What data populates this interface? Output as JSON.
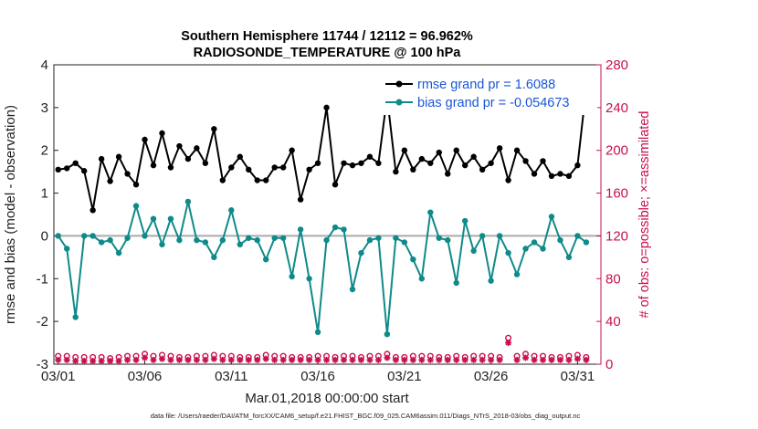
{
  "chart_data": {
    "type": "line",
    "title": "Southern Hemisphere 11744 / 12112 = 96.962%",
    "subtitle": "RADIOSONDE_TEMPERATURE @ 100 hPa",
    "xlabel": "Mar.01,2018 00:00:00 start",
    "ylabel": "rmse and bias (model - observation)",
    "ylabel_right": "# of obs: o=possible; ×=assimilated",
    "footnote": "data file: /Users/raeder/DAI/ATM_forcXX/CAM6_setup/f.e21.FHIST_BGC.f09_025.CAM6assim.011/Diags_NTrS_2018-03/obs_diag_output.nc",
    "xlim": [
      0.75,
      32.35
    ],
    "ylim": [
      -3,
      4
    ],
    "ylim_right": [
      0,
      280
    ],
    "x_ticks": [
      1,
      6,
      11,
      16,
      21,
      26,
      31
    ],
    "x_tick_labels": [
      "03/01",
      "03/06",
      "03/11",
      "03/16",
      "03/21",
      "03/26",
      "03/31"
    ],
    "y_ticks": [
      -3,
      -2,
      -1,
      0,
      1,
      2,
      3,
      4
    ],
    "y_right_ticks": [
      0,
      40,
      80,
      120,
      160,
      200,
      240,
      280
    ],
    "grid": false,
    "legend_position": "top-right",
    "series": [
      {
        "name": "rmse grand pr = 1.6088",
        "axis": "left",
        "color": "#000000",
        "marker": "circle",
        "x": [
          1,
          1.5,
          2,
          2.5,
          3,
          3.5,
          4,
          4.5,
          5,
          5.5,
          6,
          6.5,
          7,
          7.5,
          8,
          8.5,
          9,
          9.5,
          10,
          10.5,
          11,
          11.5,
          12,
          12.5,
          13,
          13.5,
          14,
          14.5,
          15,
          15.5,
          16,
          16.5,
          17,
          17.5,
          18,
          18.5,
          19,
          19.5,
          20,
          20.5,
          21,
          21.5,
          22,
          22.5,
          23,
          23.5,
          24,
          24.5,
          25,
          25.5,
          26,
          26.5,
          27,
          27.5,
          28,
          28.5,
          29,
          29.5,
          30,
          30.5,
          31,
          31.5
        ],
        "values": [
          1.55,
          1.58,
          1.7,
          1.52,
          0.6,
          1.8,
          1.28,
          1.85,
          1.45,
          1.2,
          2.25,
          1.65,
          2.4,
          1.6,
          2.1,
          1.8,
          2.05,
          1.7,
          2.5,
          1.3,
          1.6,
          1.85,
          1.55,
          1.3,
          1.3,
          1.6,
          1.6,
          2.0,
          0.85,
          1.55,
          1.7,
          3.0,
          1.2,
          1.7,
          1.65,
          1.7,
          1.85,
          1.7,
          3.25,
          1.5,
          2.0,
          1.55,
          1.8,
          1.7,
          1.95,
          1.45,
          2.0,
          1.65,
          1.85,
          1.55,
          1.7,
          2.05,
          1.3,
          2.0,
          1.75,
          1.45,
          1.75,
          1.4,
          1.45,
          1.4,
          1.65,
          3.45
        ]
      },
      {
        "name": "bias grand pr = -0.054673",
        "axis": "left",
        "color": "#0f8a8a",
        "marker": "circle",
        "x": [
          1,
          1.5,
          2,
          2.5,
          3,
          3.5,
          4,
          4.5,
          5,
          5.5,
          6,
          6.5,
          7,
          7.5,
          8,
          8.5,
          9,
          9.5,
          10,
          10.5,
          11,
          11.5,
          12,
          12.5,
          13,
          13.5,
          14,
          14.5,
          15,
          15.5,
          16,
          16.5,
          17,
          17.5,
          18,
          18.5,
          19,
          19.5,
          20,
          20.5,
          21,
          21.5,
          22,
          22.5,
          23,
          23.5,
          24,
          24.5,
          25,
          25.5,
          26,
          26.5,
          27,
          27.5,
          28,
          28.5,
          29,
          29.5,
          30,
          30.5,
          31,
          31.5
        ],
        "values": [
          0.0,
          -0.3,
          -1.9,
          0.0,
          0.0,
          -0.15,
          -0.1,
          -0.4,
          -0.05,
          0.7,
          0.0,
          0.4,
          -0.2,
          0.4,
          -0.1,
          0.8,
          -0.1,
          -0.15,
          -0.5,
          -0.1,
          0.6,
          -0.2,
          -0.05,
          -0.1,
          -0.55,
          -0.05,
          -0.05,
          -0.95,
          0.15,
          -1.0,
          -2.25,
          -0.1,
          0.2,
          0.15,
          -1.25,
          -0.4,
          -0.1,
          -0.05,
          -2.3,
          -0.05,
          -0.15,
          -0.55,
          -1.0,
          0.55,
          -0.05,
          -0.1,
          -1.1,
          0.35,
          -0.35,
          0.0,
          -1.05,
          0.0,
          -0.4,
          -0.9,
          -0.3,
          -0.15,
          -0.3,
          0.45,
          -0.1,
          -0.5,
          0.0,
          -0.15
        ]
      },
      {
        "name": "possible",
        "axis": "right",
        "color": "#c8104e",
        "marker": "o",
        "x": [
          1,
          1.5,
          2,
          2.5,
          3,
          3.5,
          4,
          4.5,
          5,
          5.5,
          6,
          6.5,
          7,
          7.5,
          8,
          8.5,
          9,
          9.5,
          10,
          10.5,
          11,
          11.5,
          12,
          12.5,
          13,
          13.5,
          14,
          14.5,
          15,
          15.5,
          16,
          16.5,
          17,
          17.5,
          18,
          18.5,
          19,
          19.5,
          20,
          20.5,
          21,
          21.5,
          22,
          22.5,
          23,
          23.5,
          24,
          24.5,
          25,
          25.5,
          26,
          26.5,
          27,
          27.5,
          28,
          28.5,
          29,
          29.5,
          30,
          30.5,
          31,
          31.5
        ],
        "values": [
          5,
          5,
          4,
          4,
          4,
          4,
          3,
          4,
          5,
          5,
          7,
          5,
          6,
          5,
          4,
          4,
          5,
          5,
          6,
          5,
          5,
          4,
          4,
          4,
          6,
          5,
          5,
          4,
          4,
          4,
          5,
          5,
          4,
          5,
          5,
          4,
          5,
          5,
          7,
          4,
          4,
          5,
          5,
          5,
          4,
          4,
          5,
          4,
          5,
          5,
          5,
          4,
          22,
          5,
          7,
          5,
          5,
          4,
          4,
          5,
          6,
          4
        ]
      },
      {
        "name": "assimilated",
        "axis": "right",
        "color": "#c8104e",
        "marker": "*",
        "x": [
          1,
          1.5,
          2,
          2.5,
          3,
          3.5,
          4,
          4.5,
          5,
          5.5,
          6,
          6.5,
          7,
          7.5,
          8,
          8.5,
          9,
          9.5,
          10,
          10.5,
          11,
          11.5,
          12,
          12.5,
          13,
          13.5,
          14,
          14.5,
          15,
          15.5,
          16,
          16.5,
          17,
          17.5,
          18,
          18.5,
          19,
          19.5,
          20,
          20.5,
          21,
          21.5,
          22,
          22.5,
          23,
          23.5,
          24,
          24.5,
          25,
          25.5,
          26,
          26.5,
          27,
          27.5,
          28,
          28.5,
          29,
          29.5,
          30,
          30.5,
          31,
          31.5
        ],
        "values": [
          4,
          4,
          3,
          3,
          3,
          3,
          3,
          3,
          4,
          4,
          6,
          4,
          5,
          4,
          4,
          4,
          4,
          4,
          5,
          4,
          4,
          4,
          4,
          4,
          5,
          4,
          4,
          4,
          4,
          4,
          4,
          4,
          4,
          4,
          4,
          4,
          4,
          4,
          6,
          4,
          4,
          4,
          4,
          4,
          4,
          4,
          4,
          4,
          4,
          4,
          4,
          4,
          20,
          4,
          6,
          4,
          4,
          4,
          4,
          4,
          5,
          4
        ]
      }
    ]
  }
}
